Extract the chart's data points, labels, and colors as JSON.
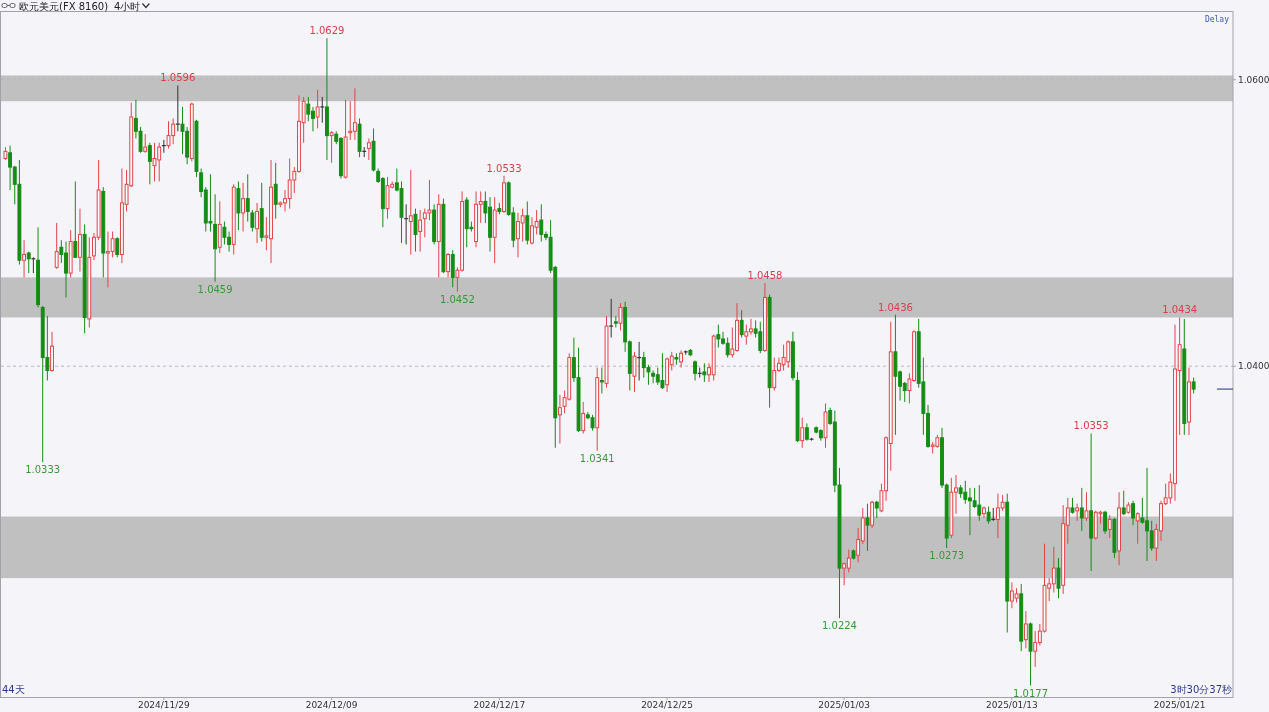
{
  "chart_data": {
    "type": "candlestick",
    "title": "欧元美元(FX 8160)",
    "subtitle": "4小时",
    "categories": [
      null,
      null,
      null,
      null,
      null,
      null,
      null,
      null,
      null,
      null,
      null,
      null,
      null,
      null,
      null,
      null,
      null,
      null,
      null,
      null,
      null,
      null,
      null,
      null,
      null,
      null,
      null,
      null,
      null,
      null,
      null,
      null,
      null,
      null,
      "2024/11/29",
      null,
      null,
      null,
      null,
      null,
      null,
      null,
      null,
      null,
      null,
      null,
      null,
      null,
      null,
      null,
      null,
      null,
      null,
      null,
      null,
      null,
      null,
      null,
      null,
      null,
      null,
      null,
      null,
      null,
      null,
      null,
      null,
      null,
      null,
      null,
      "2024/12/09",
      null,
      null,
      null,
      null,
      null,
      null,
      null,
      null,
      null,
      null,
      null,
      null,
      null,
      null,
      null,
      null,
      null,
      null,
      null,
      null,
      null,
      null,
      null,
      null,
      null,
      null,
      null,
      null,
      null,
      null,
      null,
      null,
      null,
      null,
      null,
      "2024/12/17",
      null,
      null,
      null,
      null,
      null,
      null,
      null,
      null,
      null,
      null,
      null,
      null,
      null,
      null,
      null,
      null,
      null,
      null,
      null,
      null,
      null,
      null,
      null,
      null,
      null,
      null,
      null,
      null,
      null,
      null,
      null,
      null,
      null,
      null,
      null,
      "2024/12/25",
      null,
      null,
      null,
      null,
      null,
      null,
      null,
      null,
      null,
      null,
      null,
      null,
      null,
      null,
      null,
      null,
      null,
      null,
      null,
      null,
      null,
      null,
      null,
      null,
      null,
      null,
      null,
      null,
      null,
      null,
      null,
      null,
      null,
      null,
      null,
      null,
      null,
      "2025/01/03",
      null,
      null,
      null,
      null,
      null,
      null,
      null,
      null,
      null,
      null,
      null,
      null,
      null,
      null,
      null,
      null,
      null,
      null,
      null,
      null,
      null,
      null,
      null,
      null,
      null,
      null,
      null,
      null,
      null,
      null,
      null,
      null,
      null,
      null,
      null,
      "2025/01/13",
      null,
      null,
      null,
      null,
      null,
      null,
      null,
      null,
      null,
      null,
      null,
      null,
      null,
      null,
      null,
      null,
      null,
      null,
      null,
      null,
      null,
      null,
      null,
      null,
      null,
      null,
      null,
      null,
      null,
      null,
      null,
      null,
      null,
      null,
      null,
      "2025/01/21",
      null,
      null,
      null
    ],
    "ohlc": [
      [
        1.0545,
        1.0553,
        1.0544,
        1.055
      ],
      [
        1.0549,
        1.0554,
        1.0523,
        1.0539
      ],
      [
        1.0539,
        1.054,
        1.0513,
        1.0527
      ],
      [
        1.0527,
        1.0544,
        1.0471,
        1.0474
      ],
      [
        1.0474,
        1.0488,
        1.0462,
        1.0478
      ],
      [
        1.0479,
        1.048,
        1.0465,
        1.0475
      ],
      [
        1.0475,
        1.0476,
        1.0465,
        1.0475
      ],
      [
        1.0474,
        1.0497,
        1.0441,
        1.0443
      ],
      [
        1.0441,
        1.0442,
        1.0333,
        1.0406
      ],
      [
        1.0406,
        1.0435,
        1.039,
        1.0397
      ],
      [
        1.0397,
        1.0424,
        1.0396,
        1.0414
      ],
      [
        1.0469,
        1.05,
        1.0468,
        1.048
      ],
      [
        1.0483,
        1.0488,
        1.0472,
        1.0478
      ],
      [
        1.0479,
        1.0487,
        1.0448,
        1.0465
      ],
      [
        1.0465,
        1.0495,
        1.0462,
        1.0487
      ],
      [
        1.0487,
        1.0529,
        1.0476,
        1.0476
      ],
      [
        1.0476,
        1.051,
        1.0466,
        1.0492
      ],
      [
        1.0492,
        1.0499,
        1.0423,
        1.0434
      ],
      [
        1.0433,
        1.049,
        1.0427,
        1.0476
      ],
      [
        1.0477,
        1.0493,
        1.0474,
        1.049
      ],
      [
        1.049,
        1.0544,
        1.0488,
        1.0523
      ],
      [
        1.0522,
        1.0525,
        1.0462,
        1.0479
      ],
      [
        1.0479,
        1.0494,
        1.0455,
        1.048
      ],
      [
        1.048,
        1.0494,
        1.0476,
        1.0489
      ],
      [
        1.0489,
        1.049,
        1.0476,
        1.0478
      ],
      [
        1.0478,
        1.0538,
        1.0472,
        1.0514
      ],
      [
        1.0513,
        1.0537,
        1.0508,
        1.0527
      ],
      [
        1.0526,
        1.0584,
        1.0525,
        1.0574
      ],
      [
        1.0573,
        1.0586,
        1.0559,
        1.0564
      ],
      [
        1.0564,
        1.0567,
        1.0549,
        1.055
      ],
      [
        1.055,
        1.0562,
        1.0549,
        1.0553
      ],
      [
        1.0554,
        1.0556,
        1.0527,
        1.0543
      ],
      [
        1.054,
        1.0556,
        1.0529,
        1.0545
      ],
      [
        1.0544,
        1.0556,
        1.0529,
        1.0553
      ],
      [
        1.0554,
        1.0558,
        1.0549,
        1.0554
      ],
      [
        1.0554,
        1.0571,
        1.0552,
        1.0561
      ],
      [
        1.0561,
        1.0573,
        1.0555,
        1.0569
      ],
      [
        1.0569,
        1.0596,
        1.0564,
        1.0569
      ],
      [
        1.0569,
        1.0581,
        1.0548,
        1.0564
      ],
      [
        1.0564,
        1.0567,
        1.0541,
        1.0546
      ],
      [
        1.0545,
        1.0584,
        1.0543,
        1.0583
      ],
      [
        1.0571,
        1.0572,
        1.0532,
        1.0536
      ],
      [
        1.0535,
        1.0538,
        1.0518,
        1.0522
      ],
      [
        1.0523,
        1.0525,
        1.0494,
        1.05
      ],
      [
        1.0501,
        1.0534,
        1.0494,
        1.05
      ],
      [
        1.0499,
        1.052,
        1.0459,
        1.0482
      ],
      [
        1.0483,
        1.0515,
        1.0479,
        1.0499
      ],
      [
        1.0497,
        1.0501,
        1.0485,
        1.049
      ],
      [
        1.049,
        1.0494,
        1.048,
        1.0485
      ],
      [
        1.0485,
        1.0527,
        1.0478,
        1.0525
      ],
      [
        1.0524,
        1.0529,
        1.0495,
        1.0507
      ],
      [
        1.0507,
        1.0528,
        1.0494,
        1.0517
      ],
      [
        1.0517,
        1.0534,
        1.0501,
        1.0508
      ],
      [
        1.0507,
        1.0509,
        1.0494,
        1.0497
      ],
      [
        1.0496,
        1.0514,
        1.0486,
        1.0508
      ],
      [
        1.051,
        1.0528,
        1.0487,
        1.049
      ],
      [
        1.049,
        1.0504,
        1.0481,
        1.0491
      ],
      [
        1.0489,
        1.0544,
        1.0472,
        1.0525
      ],
      [
        1.0527,
        1.0542,
        1.0503,
        1.0513
      ],
      [
        1.0513,
        1.0515,
        1.0511,
        1.0514
      ],
      [
        1.0514,
        1.0523,
        1.0508,
        1.0517
      ],
      [
        1.0517,
        1.0545,
        1.051,
        1.053
      ],
      [
        1.053,
        1.0539,
        1.0521,
        1.0536
      ],
      [
        1.0536,
        1.0589,
        1.0535,
        1.0571
      ],
      [
        1.057,
        1.0588,
        1.0556,
        1.0585
      ],
      [
        1.0583,
        1.0588,
        1.0571,
        1.0576
      ],
      [
        1.0578,
        1.0581,
        1.0564,
        1.0573
      ],
      [
        1.0574,
        1.0593,
        1.0566,
        1.0581
      ],
      [
        1.0581,
        1.0588,
        1.057,
        1.0581
      ],
      [
        1.0581,
        1.0629,
        1.0544,
        1.0561
      ],
      [
        1.0561,
        1.0564,
        1.0542,
        1.0563
      ],
      [
        1.0562,
        1.0564,
        1.0555,
        1.0557
      ],
      [
        1.0559,
        1.056,
        1.0531,
        1.0533
      ],
      [
        1.0532,
        1.0586,
        1.0531,
        1.056
      ],
      [
        1.0563,
        1.0585,
        1.0558,
        1.0564
      ],
      [
        1.0564,
        1.0594,
        1.0558,
        1.057
      ],
      [
        1.0569,
        1.0573,
        1.0546,
        1.055
      ],
      [
        1.055,
        1.0553,
        1.0546,
        1.055
      ],
      [
        1.0552,
        1.0559,
        1.0544,
        1.0556
      ],
      [
        1.0557,
        1.0566,
        1.0536,
        1.0537
      ],
      [
        1.0536,
        1.0538,
        1.0528,
        1.0529
      ],
      [
        1.0531,
        1.0532,
        1.0497,
        1.051
      ],
      [
        1.051,
        1.0532,
        1.0503,
        1.0526
      ],
      [
        1.0525,
        1.0529,
        1.0524,
        1.0527
      ],
      [
        1.0528,
        1.0538,
        1.0522,
        1.0523
      ],
      [
        1.0524,
        1.0529,
        1.0486,
        1.0504
      ],
      [
        1.0503,
        1.0513,
        1.0485,
        1.0503
      ],
      [
        1.0501,
        1.0537,
        1.0478,
        1.0505
      ],
      [
        1.0506,
        1.051,
        1.048,
        1.0492
      ],
      [
        1.0494,
        1.0509,
        1.048,
        1.0502
      ],
      [
        1.0503,
        1.051,
        1.049,
        1.0507
      ],
      [
        1.0507,
        1.053,
        1.0502,
        1.0509
      ],
      [
        1.0509,
        1.0513,
        1.0485,
        1.0487
      ],
      [
        1.0487,
        1.052,
        1.0462,
        1.0513
      ],
      [
        1.0513,
        1.0517,
        1.0465,
        1.0466
      ],
      [
        1.0466,
        1.0479,
        1.0462,
        1.0478
      ],
      [
        1.0478,
        1.0481,
        1.0455,
        1.0462
      ],
      [
        1.0462,
        1.0469,
        1.0452,
        1.0467
      ],
      [
        1.0467,
        1.0522,
        1.0466,
        1.0515
      ],
      [
        1.0516,
        1.0518,
        1.0483,
        1.0496
      ],
      [
        1.0497,
        1.0501,
        1.0494,
        1.0496
      ],
      [
        1.0487,
        1.0522,
        1.0483,
        1.0513
      ],
      [
        1.0513,
        1.0522,
        1.05,
        1.0515
      ],
      [
        1.0515,
        1.0522,
        1.05,
        1.0507
      ],
      [
        1.0511,
        1.0518,
        1.048,
        1.049
      ],
      [
        1.049,
        1.0518,
        1.0472,
        1.0509
      ],
      [
        1.051,
        1.0514,
        1.0506,
        1.0508
      ],
      [
        1.0508,
        1.0533,
        1.0507,
        1.0528
      ],
      [
        1.0528,
        1.0529,
        1.0505,
        1.0506
      ],
      [
        1.0507,
        1.0511,
        1.0483,
        1.0488
      ],
      [
        1.0489,
        1.0507,
        1.0476,
        1.0501
      ],
      [
        1.05,
        1.051,
        1.0487,
        1.0505
      ],
      [
        1.0505,
        1.0515,
        1.0485,
        1.0488
      ],
      [
        1.0486,
        1.0504,
        1.0485,
        1.0498
      ],
      [
        1.0497,
        1.0509,
        1.0492,
        1.0501
      ],
      [
        1.0502,
        1.0513,
        1.0487,
        1.0492
      ],
      [
        1.0492,
        1.0494,
        1.0488,
        1.049
      ],
      [
        1.049,
        1.0502,
        1.0465,
        1.0467
      ],
      [
        1.0469,
        1.047,
        1.0343,
        1.0364
      ],
      [
        1.0366,
        1.038,
        1.0346,
        1.0371
      ],
      [
        1.0372,
        1.0383,
        1.0367,
        1.0378
      ],
      [
        1.0377,
        1.0409,
        1.0376,
        1.0406
      ],
      [
        1.0406,
        1.042,
        1.0389,
        1.0392
      ],
      [
        1.0392,
        1.0413,
        1.0354,
        1.0355
      ],
      [
        1.0355,
        1.0375,
        1.0353,
        1.0367
      ],
      [
        1.0366,
        1.0368,
        1.0363,
        1.0364
      ],
      [
        1.0364,
        1.0366,
        1.0355,
        1.0357
      ],
      [
        1.0357,
        1.0399,
        1.0341,
        1.0392
      ],
      [
        1.039,
        1.0399,
        1.0381,
        1.0389
      ],
      [
        1.0388,
        1.0435,
        1.0385,
        1.0428
      ],
      [
        1.0428,
        1.0447,
        1.042,
        1.0428
      ],
      [
        1.0431,
        1.0435,
        1.0427,
        1.043
      ],
      [
        1.043,
        1.0444,
        1.0425,
        1.0441
      ],
      [
        1.0441,
        1.0445,
        1.041,
        1.0417
      ],
      [
        1.0417,
        1.0418,
        1.0383,
        1.0395
      ],
      [
        1.0393,
        1.041,
        1.0382,
        1.0407
      ],
      [
        1.0406,
        1.0417,
        1.039,
        1.0406
      ],
      [
        1.0406,
        1.041,
        1.0392,
        1.0399
      ],
      [
        1.0399,
        1.0401,
        1.0387,
        1.0396
      ],
      [
        1.0395,
        1.0397,
        1.0388,
        1.0393
      ],
      [
        1.0394,
        1.0399,
        1.0387,
        1.0389
      ],
      [
        1.039,
        1.0409,
        1.0384,
        1.0385
      ],
      [
        1.0387,
        1.0406,
        1.0382,
        1.0405
      ],
      [
        1.0401,
        1.041,
        1.0397,
        1.0407
      ],
      [
        1.0406,
        1.0409,
        1.0401,
        1.0405
      ],
      [
        1.0403,
        1.0411,
        1.0399,
        1.0409
      ],
      [
        1.041,
        1.0411,
        1.0408,
        1.041
      ],
      [
        1.0411,
        1.0412,
        1.0407,
        1.0408
      ],
      [
        1.0403,
        1.0404,
        1.039,
        1.0395
      ],
      [
        1.0395,
        1.0399,
        1.0392,
        1.0395
      ],
      [
        1.0396,
        1.0402,
        1.0389,
        1.0394
      ],
      [
        1.0394,
        1.0402,
        1.0389,
        1.0399
      ],
      [
        1.0394,
        1.0422,
        1.039,
        1.0421
      ],
      [
        1.0422,
        1.0429,
        1.0413,
        1.0419
      ],
      [
        1.0419,
        1.0424,
        1.0415,
        1.0416
      ],
      [
        1.0416,
        1.042,
        1.0406,
        1.0408
      ],
      [
        1.0408,
        1.0427,
        1.0406,
        1.0412
      ],
      [
        1.0411,
        1.0444,
        1.041,
        1.0432
      ],
      [
        1.0432,
        1.0439,
        1.042,
        1.0422
      ],
      [
        1.0421,
        1.0429,
        1.0415,
        1.0424
      ],
      [
        1.0424,
        1.0433,
        1.0422,
        1.0426
      ],
      [
        1.0426,
        1.0432,
        1.042,
        1.0423
      ],
      [
        1.0424,
        1.0431,
        1.0409,
        1.0411
      ],
      [
        1.0411,
        1.0458,
        1.041,
        1.0448
      ],
      [
        1.0448,
        1.045,
        1.0371,
        1.0385
      ],
      [
        1.0385,
        1.0406,
        1.0383,
        1.0397
      ],
      [
        1.0397,
        1.0406,
        1.0396,
        1.0402
      ],
      [
        1.0401,
        1.0415,
        1.0397,
        1.0406
      ],
      [
        1.0403,
        1.0418,
        1.0399,
        1.0417
      ],
      [
        1.0417,
        1.0424,
        1.039,
        1.0392
      ],
      [
        1.039,
        1.0396,
        1.0347,
        1.0348
      ],
      [
        1.0348,
        1.0364,
        1.0343,
        1.0357
      ],
      [
        1.0357,
        1.036,
        1.0348,
        1.0349
      ],
      [
        1.0349,
        1.035,
        1.0348,
        1.0349
      ],
      [
        1.0357,
        1.0358,
        1.0353,
        1.0354
      ],
      [
        1.0355,
        1.0356,
        1.0348,
        1.035
      ],
      [
        1.035,
        1.0374,
        1.0343,
        1.0368
      ],
      [
        1.0369,
        1.0371,
        1.0359,
        1.036
      ],
      [
        1.0361,
        1.0369,
        1.0312,
        1.0317
      ],
      [
        1.0317,
        1.0329,
        1.0224,
        1.0259
      ],
      [
        1.0259,
        1.0263,
        1.0247,
        1.0262
      ],
      [
        1.0259,
        1.0272,
        1.0256,
        1.0266
      ],
      [
        1.0271,
        1.0272,
        1.0265,
        1.0266
      ],
      [
        1.0268,
        1.0287,
        1.0263,
        1.0279
      ],
      [
        1.0278,
        1.0301,
        1.0276,
        1.0294
      ],
      [
        1.0294,
        1.0304,
        1.0271,
        1.0289
      ],
      [
        1.0289,
        1.0306,
        1.0287,
        1.0305
      ],
      [
        1.0305,
        1.0306,
        1.0294,
        1.0301
      ],
      [
        1.0299,
        1.0318,
        1.0298,
        1.0313
      ],
      [
        1.0313,
        1.0351,
        1.0306,
        1.035
      ],
      [
        1.0346,
        1.0431,
        1.0327,
        1.041
      ],
      [
        1.041,
        1.0436,
        1.0352,
        1.0393
      ],
      [
        1.0396,
        1.0397,
        1.0376,
        1.0386
      ],
      [
        1.0388,
        1.0389,
        1.0375,
        1.0383
      ],
      [
        1.0383,
        1.0395,
        1.0374,
        1.0391
      ],
      [
        1.039,
        1.0425,
        1.0389,
        1.0424
      ],
      [
        1.0424,
        1.0433,
        1.0385,
        1.0388
      ],
      [
        1.0389,
        1.0406,
        1.0352,
        1.0367
      ],
      [
        1.0367,
        1.0373,
        1.0343,
        1.0344
      ],
      [
        1.0344,
        1.0347,
        1.0339,
        1.0345
      ],
      [
        1.0344,
        1.0352,
        1.0343,
        1.035
      ],
      [
        1.035,
        1.0357,
        1.0315,
        1.0317
      ],
      [
        1.0317,
        1.0318,
        1.0273,
        1.028
      ],
      [
        1.0282,
        1.0322,
        1.028,
        1.0312
      ],
      [
        1.0312,
        1.0324,
        1.0297,
        1.0315
      ],
      [
        1.0315,
        1.0317,
        1.0308,
        1.0311
      ],
      [
        1.0312,
        1.032,
        1.0304,
        1.0307
      ],
      [
        1.0308,
        1.0315,
        1.0282,
        1.0306
      ],
      [
        1.0306,
        1.0315,
        1.0301,
        1.0302
      ],
      [
        1.0303,
        1.0317,
        1.0292,
        1.0296
      ],
      [
        1.0297,
        1.0302,
        1.0294,
        1.0301
      ],
      [
        1.0298,
        1.0302,
        1.029,
        1.0292
      ],
      [
        1.0293,
        1.0301,
        1.0292,
        1.0293
      ],
      [
        1.0293,
        1.0311,
        1.028,
        1.0301
      ],
      [
        1.0301,
        1.031,
        1.0299,
        1.0305
      ],
      [
        1.0305,
        1.0311,
        1.0214,
        1.0236
      ],
      [
        1.0236,
        1.0249,
        1.0231,
        1.0243
      ],
      [
        1.0238,
        1.0245,
        1.0235,
        1.0241
      ],
      [
        1.0241,
        1.0248,
        1.0201,
        1.0208
      ],
      [
        1.0209,
        1.0229,
        1.0203,
        1.022
      ],
      [
        1.022,
        1.0221,
        1.0177,
        1.0201
      ],
      [
        1.0201,
        1.0215,
        1.019,
        1.0207
      ],
      [
        1.0207,
        1.022,
        1.0205,
        1.0215
      ],
      [
        1.0215,
        1.0276,
        1.0214,
        1.0247
      ],
      [
        1.0245,
        1.0252,
        1.0236,
        1.0248
      ],
      [
        1.0248,
        1.0274,
        1.0242,
        1.0259
      ],
      [
        1.0259,
        1.0266,
        1.0238,
        1.0245
      ],
      [
        1.0247,
        1.0303,
        1.0241,
        1.029
      ],
      [
        1.0289,
        1.0308,
        1.0276,
        1.0301
      ],
      [
        1.0301,
        1.0308,
        1.0297,
        1.0298
      ],
      [
        1.0299,
        1.0304,
        1.0292,
        1.0301
      ],
      [
        1.0301,
        1.0315,
        1.0285,
        1.0294
      ],
      [
        1.0294,
        1.0312,
        1.0292,
        1.0299
      ],
      [
        1.0299,
        1.0353,
        1.0257,
        1.028
      ],
      [
        1.028,
        1.0299,
        1.0279,
        1.0298
      ],
      [
        1.0297,
        1.0299,
        1.029,
        1.0298
      ],
      [
        1.0298,
        1.0299,
        1.0283,
        1.0285
      ],
      [
        1.0286,
        1.0296,
        1.028,
        1.0293
      ],
      [
        1.0293,
        1.0294,
        1.0266,
        1.027
      ],
      [
        1.0271,
        1.0312,
        1.0261,
        1.0301
      ],
      [
        1.0301,
        1.0313,
        1.0296,
        1.0297
      ],
      [
        1.0298,
        1.0305,
        1.0297,
        1.0303
      ],
      [
        1.0304,
        1.0306,
        1.0289,
        1.0294
      ],
      [
        1.0292,
        1.0298,
        1.0276,
        1.0297
      ],
      [
        1.0294,
        1.0308,
        1.029,
        1.0291
      ],
      [
        1.0292,
        1.0329,
        1.0264,
        1.0285
      ],
      [
        1.0285,
        1.0292,
        1.0271,
        1.0273
      ],
      [
        1.0273,
        1.029,
        1.0264,
        1.0286
      ],
      [
        1.0285,
        1.0306,
        1.0278,
        1.0304
      ],
      [
        1.0304,
        1.0318,
        1.0303,
        1.0308
      ],
      [
        1.0308,
        1.0325,
        1.0304,
        1.0319
      ],
      [
        1.0318,
        1.0429,
        1.0306,
        1.0398
      ],
      [
        1.0397,
        1.0434,
        1.0352,
        1.0415
      ],
      [
        1.0412,
        1.0433,
        1.0352,
        1.036
      ],
      [
        1.0361,
        1.0399,
        1.0352,
        1.0389
      ],
      [
        1.0389,
        1.0392,
        1.0381,
        1.0384
      ]
    ],
    "colors": [
      "#e0454a",
      "#158c15",
      "#158c15",
      "#158c15",
      "#e0454a",
      "#158c15",
      "#333333",
      "#158c15",
      "#158c15",
      "#158c15",
      "#e0454a",
      "#e0454a",
      "#158c15",
      "#158c15",
      "#e0454a",
      "#158c15",
      "#e0454a",
      "#158c15",
      "#e0454a",
      "#e0454a",
      "#e0454a",
      "#158c15",
      "#e0454a",
      "#e0454a",
      "#158c15",
      "#e0454a",
      "#e0454a",
      "#e0454a",
      "#158c15",
      "#158c15",
      "#e0454a",
      "#158c15",
      "#e0454a",
      "#e0454a",
      "#333333",
      "#e0454a",
      "#e0454a",
      "#333333",
      "#158c15",
      "#158c15",
      "#e0454a",
      "#158c15",
      "#158c15",
      "#158c15",
      "#158c15",
      "#158c15",
      "#e0454a",
      "#158c15",
      "#158c15",
      "#e0454a",
      "#158c15",
      "#e0454a",
      "#158c15",
      "#158c15",
      "#e0454a",
      "#158c15",
      "#e0454a",
      "#e0454a",
      "#158c15",
      "#e0454a",
      "#e0454a",
      "#e0454a",
      "#e0454a",
      "#e0454a",
      "#e0454a",
      "#158c15",
      "#158c15",
      "#e0454a",
      "#333333",
      "#158c15",
      "#e0454a",
      "#158c15",
      "#158c15",
      "#e0454a",
      "#e0454a",
      "#e0454a",
      "#158c15",
      "#333333",
      "#e0454a",
      "#158c15",
      "#158c15",
      "#158c15",
      "#e0454a",
      "#e0454a",
      "#158c15",
      "#158c15",
      "#333333",
      "#e0454a",
      "#158c15",
      "#e0454a",
      "#e0454a",
      "#e0454a",
      "#158c15",
      "#e0454a",
      "#158c15",
      "#e0454a",
      "#158c15",
      "#e0454a",
      "#e0454a",
      "#158c15",
      "#158c15",
      "#e0454a",
      "#e0454a",
      "#158c15",
      "#158c15",
      "#e0454a",
      "#158c15",
      "#e0454a",
      "#158c15",
      "#158c15",
      "#e0454a",
      "#e0454a",
      "#158c15",
      "#e0454a",
      "#e0454a",
      "#158c15",
      "#158c15",
      "#158c15",
      "#158c15",
      "#e0454a",
      "#e0454a",
      "#e0454a",
      "#158c15",
      "#158c15",
      "#e0454a",
      "#158c15",
      "#158c15",
      "#e0454a",
      "#158c15",
      "#e0454a",
      "#333333",
      "#158c15",
      "#e0454a",
      "#158c15",
      "#158c15",
      "#e0454a",
      "#333333",
      "#158c15",
      "#158c15",
      "#158c15",
      "#158c15",
      "#158c15",
      "#e0454a",
      "#e0454a",
      "#158c15",
      "#e0454a",
      "#333333",
      "#158c15",
      "#158c15",
      "#333333",
      "#158c15",
      "#e0454a",
      "#e0454a",
      "#158c15",
      "#158c15",
      "#158c15",
      "#e0454a",
      "#e0454a",
      "#158c15",
      "#e0454a",
      "#e0454a",
      "#158c15",
      "#158c15",
      "#e0454a",
      "#158c15",
      "#e0454a",
      "#e0454a",
      "#e0454a",
      "#e0454a",
      "#158c15",
      "#158c15",
      "#e0454a",
      "#158c15",
      "#333333",
      "#158c15",
      "#158c15",
      "#e0454a",
      "#158c15",
      "#158c15",
      "#158c15",
      "#e0454a",
      "#e0454a",
      "#158c15",
      "#e0454a",
      "#e0454a",
      "#158c15",
      "#e0454a",
      "#158c15",
      "#e0454a",
      "#e0454a",
      "#e0454a",
      "#158c15",
      "#158c15",
      "#158c15",
      "#e0454a",
      "#e0454a",
      "#158c15",
      "#158c15",
      "#158c15",
      "#e0454a",
      "#e0454a",
      "#158c15",
      "#158c15",
      "#e0454a",
      "#e0454a",
      "#158c15",
      "#158c15",
      "#158c15",
      "#158c15",
      "#158c15",
      "#e0454a",
      "#158c15",
      "#333333",
      "#e0454a",
      "#e0454a",
      "#158c15",
      "#e0454a",
      "#e0454a",
      "#158c15",
      "#e0454a",
      "#158c15",
      "#e0454a",
      "#e0454a",
      "#e0454a",
      "#e0454a",
      "#e0454a",
      "#158c15",
      "#e0454a",
      "#e0454a",
      "#158c15",
      "#e0454a",
      "#158c15",
      "#e0454a",
      "#158c15",
      "#e0454a",
      "#e0454a",
      "#158c15",
      "#e0454a",
      "#158c15",
      "#e0454a",
      "#158c15",
      "#e0454a",
      "#158c15",
      "#e0454a",
      "#158c15",
      "#158c15",
      "#158c15",
      "#e0454a",
      "#e0454a",
      "#e0454a",
      "#e0454a",
      "#e0454a",
      "#e0454a",
      "#158c15",
      "#e0454a",
      "#158c15"
    ],
    "ylim": [
      1.0169,
      1.0648
    ],
    "yticks": [
      {
        "value": 1.06,
        "label": "1.0600"
      },
      {
        "value": 1.04,
        "label": "1.0400"
      }
    ],
    "grid": "y",
    "bands": [
      {
        "axis": "y",
        "from": 1.0585,
        "to": 1.0603,
        "color": "#c0c0c0"
      },
      {
        "axis": "y",
        "from": 1.0434,
        "to": 1.0462,
        "color": "#c0c0c0"
      },
      {
        "axis": "y",
        "from": 1.0252,
        "to": 1.0295,
        "color": "#c0c0c0"
      }
    ],
    "annotations": [
      {
        "text": "1.0629",
        "y": 1.0629
      },
      {
        "text": "1.0596",
        "y": 1.0596
      },
      {
        "text": "1.0533",
        "y": 1.0533
      },
      {
        "text": "1.0458",
        "y": 1.0458
      },
      {
        "text": "1.0436",
        "y": 1.0436
      },
      {
        "text": "1.0434",
        "y": 1.0434
      },
      {
        "text": "1.0353",
        "y": 1.0353
      },
      {
        "text": "1.0333",
        "y": 1.0333
      },
      {
        "text": "1.0459",
        "y": 1.0459
      },
      {
        "text": "1.0452",
        "y": 1.0452
      },
      {
        "text": "1.0341",
        "y": 1.0341
      },
      {
        "text": "1.0224",
        "y": 1.0224
      },
      {
        "text": "1.0273",
        "y": 1.0273
      },
      {
        "text": "1.0177",
        "y": 1.0177
      },
      "Delay",
      "44天",
      "3时30分37秒"
    ]
  }
}
